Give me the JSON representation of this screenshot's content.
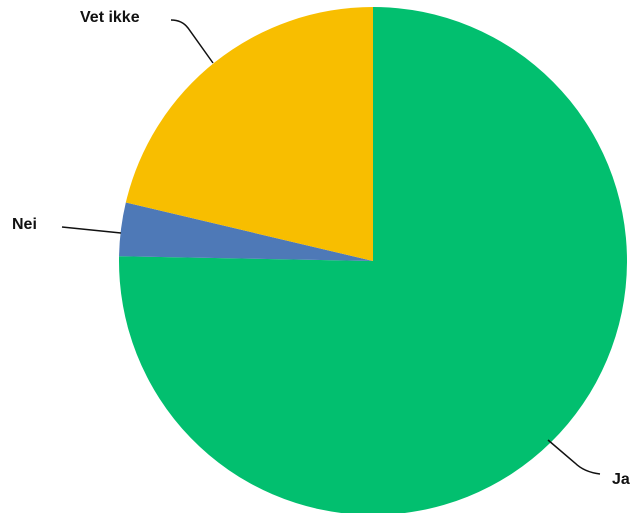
{
  "chart_data": {
    "type": "pie",
    "title": "",
    "start_angle_deg": 0,
    "direction": "clockwise",
    "legend": "none",
    "slices": [
      {
        "label": "Ja",
        "value": 75.3,
        "color": "#02BF6F"
      },
      {
        "label": "Nei",
        "value": 3.4,
        "color": "#4E79B7"
      },
      {
        "label": "Vet ikke",
        "value": 21.3,
        "color": "#F8BE00"
      }
    ]
  }
}
